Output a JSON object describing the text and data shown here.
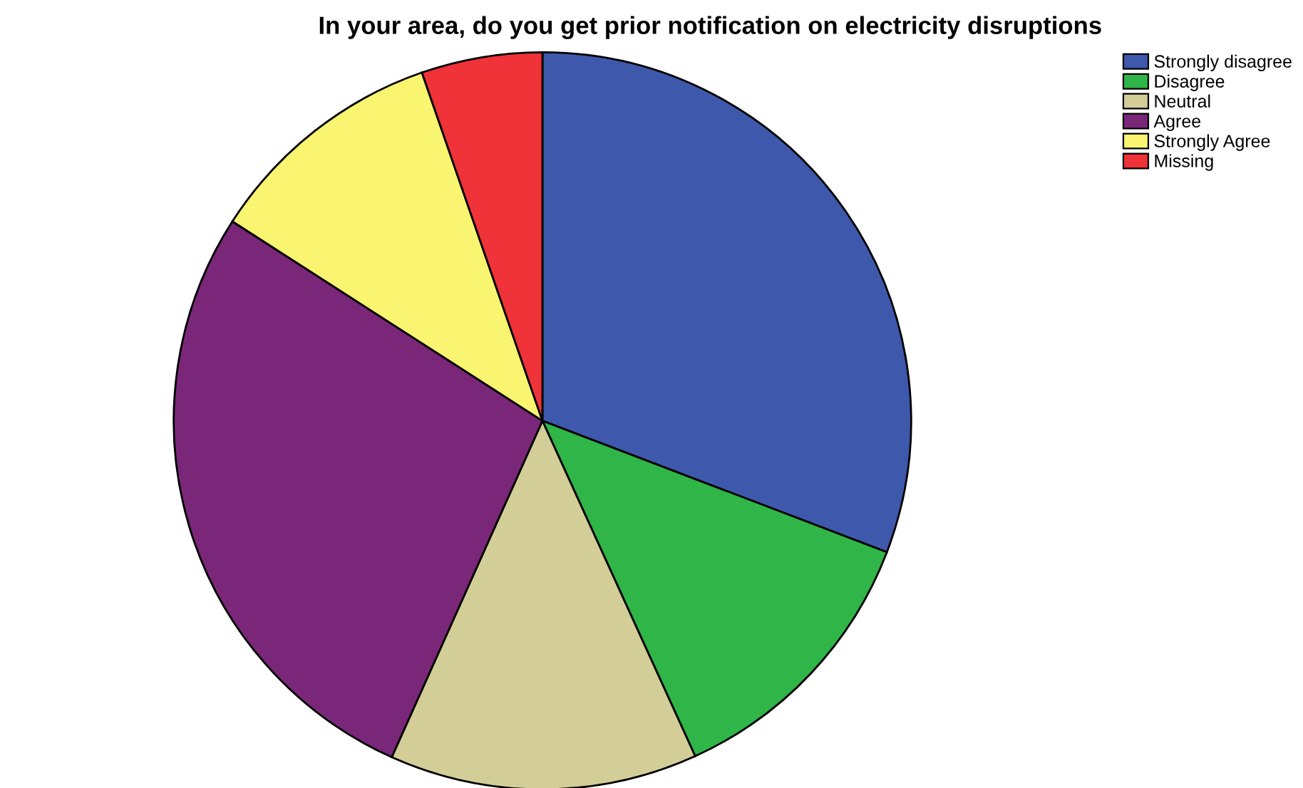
{
  "chart_data": {
    "type": "pie",
    "title": "In your area, do you get prior notification on electricity disruptions",
    "categories": [
      "Strongly disagree",
      "Disagree",
      "Neutral",
      "Agree",
      "Strongly Agree",
      "Missing"
    ],
    "values": [
      30.8,
      12.4,
      13.5,
      27.4,
      10.6,
      5.3
    ],
    "colors": [
      "#3e58ac",
      "#2fb548",
      "#d3ce97",
      "#7a2779",
      "#f9f571",
      "#ef3338"
    ],
    "legend": "top right"
  }
}
